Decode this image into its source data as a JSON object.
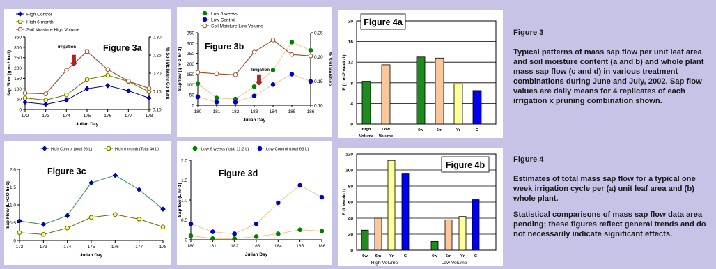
{
  "colors": {
    "background": "#c6c3e6",
    "blue": "#0000cc",
    "dark_blue": "#000099",
    "olive": "#6b6b00",
    "yellow_marker": "#ffff66",
    "brown": "#a0522d",
    "green": "#008000",
    "light_orange": "#f4c48a",
    "bar_green": "#1f8a1f",
    "bar_peach": "#f9c79a",
    "bar_yellow": "#ffff99",
    "bar_blue": "#0000ee"
  },
  "captions": {
    "fig3_title": "Figure 3",
    "fig3_text": "Typical patterns of mass sap flow per unit leaf area and soil moisture content (a and b) and whole plant mass sap flow (c and d) in various treatment combinations during June and July, 2002. Sap flow values are daily means for 4 replicates of each irrigation x pruning combination shown.",
    "fig4_title": "Figure 4",
    "fig4_text": "Estimates of total mass sap flow for a typical one week irrigation cycle per (a) unit leaf area and (b) whole plant.",
    "fig4_note": "Statistical comparisons of mass sap flow data area pending; these figures reflect general trends and do not necessarily indicate significant effects."
  },
  "chart_data": [
    {
      "id": "fig3a",
      "type": "line",
      "title": "Figure 3a",
      "annotation": "irrigation",
      "xlabel": "Julian Day",
      "ylabel": "Sap Flow (g m-2 hr-1)",
      "y2label": "% Soil Moisture Content",
      "x": [
        172,
        173,
        174,
        175,
        176,
        177,
        178
      ],
      "ylim": [
        0,
        350
      ],
      "yticks": [
        0,
        50,
        100,
        150,
        200,
        250,
        300,
        350
      ],
      "y2lim": [
        0.1,
        0.3
      ],
      "y2ticks": [
        "0.10",
        "0.15",
        "0.20",
        "0.25",
        "0.30"
      ],
      "legend": "top-left",
      "series": [
        {
          "name": "High Control",
          "axis": "y",
          "values": [
            35,
            25,
            45,
            100,
            115,
            90,
            55
          ]
        },
        {
          "name": "High 6 month",
          "axis": "y",
          "values": [
            55,
            45,
            70,
            145,
            165,
            135,
            85
          ]
        },
        {
          "name": "Soil Moisture High Volume",
          "axis": "y2",
          "values": [
            0.145,
            0.143,
            0.208,
            0.26,
            0.21,
            0.178,
            0.158
          ]
        }
      ]
    },
    {
      "id": "fig3b",
      "type": "line",
      "title": "Figure 3b",
      "annotation": "Irrigation",
      "xlabel": "Julian Day",
      "ylabel": "Sapflow (g m-2 hr-1)",
      "y2label": "% Soil Moisture",
      "x": [
        180,
        181,
        182,
        183,
        184,
        185,
        186
      ],
      "ylim": [
        0,
        350
      ],
      "yticks": [
        0,
        50,
        100,
        150,
        200,
        250,
        300,
        350
      ],
      "y2lim": [
        0.1,
        0.25
      ],
      "y2ticks": [
        "0.10",
        "0.15",
        "0.20",
        "0.25"
      ],
      "legend": "top-left",
      "series": [
        {
          "name": "Low 6 weeks",
          "axis": "y",
          "values": [
            105,
            35,
            30,
            90,
            170,
            305,
            265
          ]
        },
        {
          "name": "Low Control",
          "axis": "y",
          "values": [
            40,
            15,
            15,
            45,
            100,
            150,
            115
          ]
        },
        {
          "name": "Soil Moisture Low Volume",
          "axis": "y2",
          "values": [
            0.168,
            0.165,
            0.163,
            0.21,
            0.235,
            0.205,
            0.202
          ]
        }
      ]
    },
    {
      "id": "fig3c",
      "type": "line",
      "title": "Figure 3c",
      "xlabel": "Julian Day",
      "ylabel": "Sap Flow (L H2O hr-1)",
      "x": [
        172,
        173,
        174,
        175,
        176,
        177,
        178
      ],
      "ylim": [
        0,
        2
      ],
      "yticks": [
        "0",
        "0.5",
        "1.0",
        "1.5",
        "2.0"
      ],
      "legend": "top",
      "series": [
        {
          "name": "High Control (total 96 L)",
          "values": [
            0.55,
            0.45,
            0.7,
            1.62,
            1.83,
            1.43,
            0.88
          ]
        },
        {
          "name": "High 6 month (Total 40 L)",
          "values": [
            0.22,
            0.17,
            0.35,
            0.65,
            0.73,
            0.6,
            0.38
          ]
        }
      ]
    },
    {
      "id": "fig3d",
      "type": "line",
      "title": "Figure 3d",
      "xlabel": "Julian Day",
      "ylabel": "Sapflow (L hr-1)",
      "x": [
        180,
        181,
        182,
        183,
        184,
        185,
        186
      ],
      "ylim": [
        0,
        2
      ],
      "yticks": [
        "0",
        "0.5",
        "1.0",
        "1.5",
        "2.0"
      ],
      "legend": "top",
      "series": [
        {
          "name": "Low 6 weeks (total 11.2 L)",
          "values": [
            0.1,
            0.03,
            0.03,
            0.08,
            0.15,
            0.25,
            0.22
          ]
        },
        {
          "name": "Low Control (total 63 L)",
          "values": [
            0.4,
            0.2,
            0.15,
            0.4,
            0.93,
            1.37,
            1.07
          ]
        }
      ]
    },
    {
      "id": "fig4a",
      "type": "bar",
      "title": "Figure 4a",
      "ylabel": "E (L m-2 week-1)",
      "ylim": [
        0,
        20
      ],
      "yticks": [
        0,
        4,
        8,
        12,
        16,
        20
      ],
      "categories": [
        "High Volume",
        "Low Volume",
        "6w",
        "6m",
        "Yr",
        "C"
      ],
      "values": [
        8.3,
        11.5,
        13.0,
        12.8,
        7.8,
        6.5
      ]
    },
    {
      "id": "fig4b",
      "type": "bar",
      "title": "Figure 4b",
      "ylabel": "E (L week-1)",
      "ylim": [
        0,
        120
      ],
      "yticks": [
        0,
        20,
        40,
        60,
        80,
        100,
        120
      ],
      "categories": [
        "6w",
        "6m",
        "Yr",
        "C",
        "6w",
        "6m",
        "Yr",
        "C"
      ],
      "groups": [
        "High Volume",
        "Low Volume"
      ],
      "values": [
        25,
        40,
        112,
        96,
        11,
        38,
        42,
        63
      ]
    }
  ]
}
